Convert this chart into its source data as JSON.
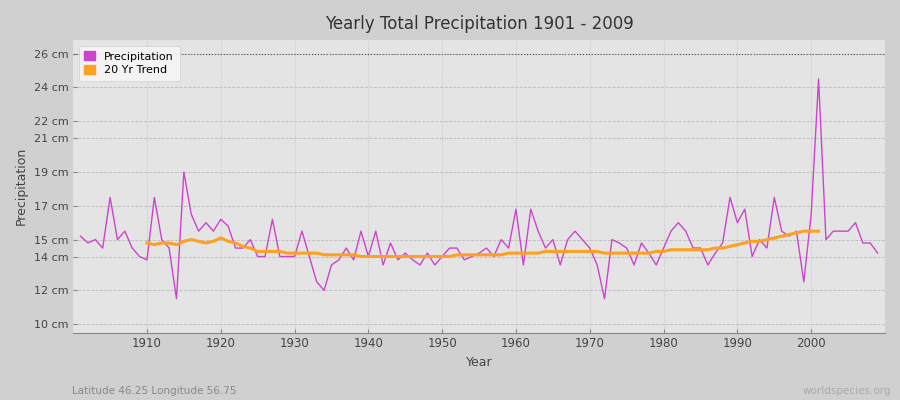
{
  "title": "Yearly Total Precipitation 1901 - 2009",
  "xlabel": "Year",
  "ylabel": "Precipitation",
  "subtitle_lat_lon": "Latitude 46.25 Longitude 56.75",
  "watermark": "worldspecies.org",
  "precip_color": "#CC44CC",
  "trend_color": "#FFA020",
  "bg_color": "#D8D8D8",
  "plot_bg_color": "#E8E8E8",
  "years": [
    1901,
    1902,
    1903,
    1904,
    1905,
    1906,
    1907,
    1908,
    1909,
    1910,
    1911,
    1912,
    1913,
    1914,
    1915,
    1916,
    1917,
    1918,
    1919,
    1920,
    1921,
    1922,
    1923,
    1924,
    1925,
    1926,
    1927,
    1928,
    1929,
    1930,
    1931,
    1932,
    1933,
    1934,
    1935,
    1936,
    1937,
    1938,
    1939,
    1940,
    1941,
    1942,
    1943,
    1944,
    1945,
    1946,
    1947,
    1948,
    1949,
    1950,
    1951,
    1952,
    1953,
    1954,
    1955,
    1956,
    1957,
    1958,
    1959,
    1960,
    1961,
    1962,
    1963,
    1964,
    1965,
    1966,
    1967,
    1968,
    1969,
    1970,
    1971,
    1972,
    1973,
    1974,
    1975,
    1976,
    1977,
    1978,
    1979,
    1980,
    1981,
    1982,
    1983,
    1984,
    1985,
    1986,
    1987,
    1988,
    1989,
    1990,
    1991,
    1992,
    1993,
    1994,
    1995,
    1996,
    1997,
    1998,
    1999,
    2000,
    2001,
    2002,
    2003,
    2004,
    2005,
    2006,
    2007,
    2008,
    2009
  ],
  "precip": [
    15.2,
    14.8,
    15.0,
    14.5,
    17.5,
    15.0,
    15.5,
    14.5,
    14.0,
    13.8,
    17.5,
    15.0,
    14.5,
    11.5,
    19.0,
    16.5,
    15.5,
    16.0,
    15.5,
    16.2,
    15.8,
    14.5,
    14.5,
    15.0,
    14.0,
    14.0,
    16.2,
    14.0,
    14.0,
    14.0,
    15.5,
    14.0,
    12.5,
    12.0,
    13.5,
    13.8,
    14.5,
    13.8,
    15.5,
    14.0,
    15.5,
    13.5,
    14.8,
    13.8,
    14.2,
    13.8,
    13.5,
    14.2,
    13.5,
    14.0,
    14.5,
    14.5,
    13.8,
    14.0,
    14.2,
    14.5,
    14.0,
    15.0,
    14.5,
    16.8,
    13.5,
    16.8,
    15.5,
    14.5,
    15.0,
    13.5,
    15.0,
    15.5,
    15.0,
    14.5,
    13.5,
    11.5,
    15.0,
    14.8,
    14.5,
    13.5,
    14.8,
    14.2,
    13.5,
    14.5,
    15.5,
    16.0,
    15.5,
    14.5,
    14.5,
    13.5,
    14.2,
    14.8,
    17.5,
    16.0,
    16.8,
    14.0,
    15.0,
    14.5,
    17.5,
    15.5,
    15.2,
    15.5,
    12.5,
    16.5,
    24.5,
    15.0,
    15.5,
    15.5,
    15.5,
    16.0,
    14.8,
    14.8,
    14.2
  ],
  "trend": [
    null,
    null,
    null,
    null,
    null,
    null,
    null,
    null,
    null,
    14.8,
    14.7,
    14.8,
    14.8,
    14.7,
    14.9,
    15.0,
    14.9,
    14.8,
    14.9,
    15.1,
    14.9,
    14.8,
    14.6,
    14.5,
    14.3,
    14.3,
    14.3,
    14.3,
    14.2,
    14.2,
    14.2,
    14.2,
    14.2,
    14.1,
    14.1,
    14.1,
    14.1,
    14.1,
    14.0,
    14.0,
    14.0,
    14.0,
    14.0,
    14.0,
    14.0,
    14.0,
    14.0,
    14.0,
    14.0,
    14.0,
    14.0,
    14.1,
    14.1,
    14.1,
    14.1,
    14.1,
    14.1,
    14.1,
    14.2,
    14.2,
    14.2,
    14.2,
    14.2,
    14.3,
    14.3,
    14.3,
    14.3,
    14.3,
    14.3,
    14.3,
    14.3,
    14.2,
    14.2,
    14.2,
    14.2,
    14.2,
    14.2,
    14.2,
    14.3,
    14.3,
    14.4,
    14.4,
    14.4,
    14.4,
    14.4,
    14.4,
    14.5,
    14.5,
    14.6,
    14.7,
    14.8,
    14.9,
    14.9,
    15.0,
    15.1,
    15.2,
    15.3,
    15.4,
    15.5,
    15.5,
    15.5,
    null,
    null,
    null,
    null,
    null,
    null,
    null
  ],
  "ylim": [
    9.5,
    26.8
  ],
  "yticks": [
    10,
    12,
    14,
    15,
    17,
    19,
    21,
    22,
    24,
    26
  ],
  "ytick_labels": [
    "10 cm",
    "12 cm",
    "14 cm",
    "15 cm",
    "17 cm",
    "19 cm",
    "21 cm",
    "22 cm",
    "24 cm",
    "26 cm"
  ],
  "xlim": [
    1900,
    2010
  ],
  "xticks": [
    1910,
    1920,
    1930,
    1940,
    1950,
    1960,
    1970,
    1980,
    1990,
    2000
  ]
}
